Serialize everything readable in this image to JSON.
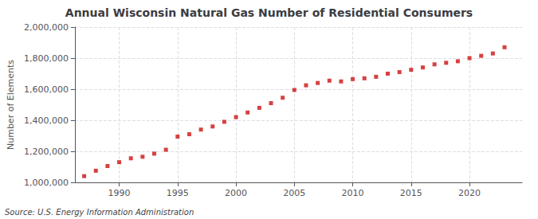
{
  "chart_data": {
    "type": "scatter",
    "title": "Annual Wisconsin Natural Gas Number of Residential Consumers",
    "ylabel": "Number of Elements",
    "annotations": [
      "Source: U.S. Energy Information Administration"
    ],
    "x": [
      1987,
      1988,
      1989,
      1990,
      1991,
      1992,
      1993,
      1994,
      1995,
      1996,
      1997,
      1998,
      1999,
      2000,
      2001,
      2002,
      2003,
      2004,
      2005,
      2006,
      2007,
      2008,
      2009,
      2010,
      2011,
      2012,
      2013,
      2014,
      2015,
      2016,
      2017,
      2018,
      2019,
      2020,
      2021,
      2022,
      2023
    ],
    "values": [
      1040000,
      1075000,
      1105000,
      1130000,
      1155000,
      1165000,
      1185000,
      1210000,
      1295000,
      1310000,
      1340000,
      1360000,
      1390000,
      1420000,
      1450000,
      1480000,
      1510000,
      1545000,
      1595000,
      1625000,
      1640000,
      1655000,
      1650000,
      1665000,
      1670000,
      1680000,
      1700000,
      1710000,
      1725000,
      1740000,
      1760000,
      1770000,
      1780000,
      1800000,
      1815000,
      1830000,
      1870000
    ],
    "color": "#cc1111",
    "marker": "square",
    "xlim": [
      1986.2,
      2024.5
    ],
    "xticks": [
      1990,
      1995,
      2000,
      2005,
      2010,
      2015,
      2020
    ],
    "ylim": [
      1000000,
      2000000
    ],
    "yticks": [
      {
        "value": 1000000,
        "label": "1,000,000"
      },
      {
        "value": 1200000,
        "label": "1,200,000"
      },
      {
        "value": 1400000,
        "label": "1,400,000"
      },
      {
        "value": 1600000,
        "label": "1,600,000"
      },
      {
        "value": 1800000,
        "label": "1,800,000"
      },
      {
        "value": 2000000,
        "label": "2,000,000"
      }
    ],
    "grid": true
  }
}
